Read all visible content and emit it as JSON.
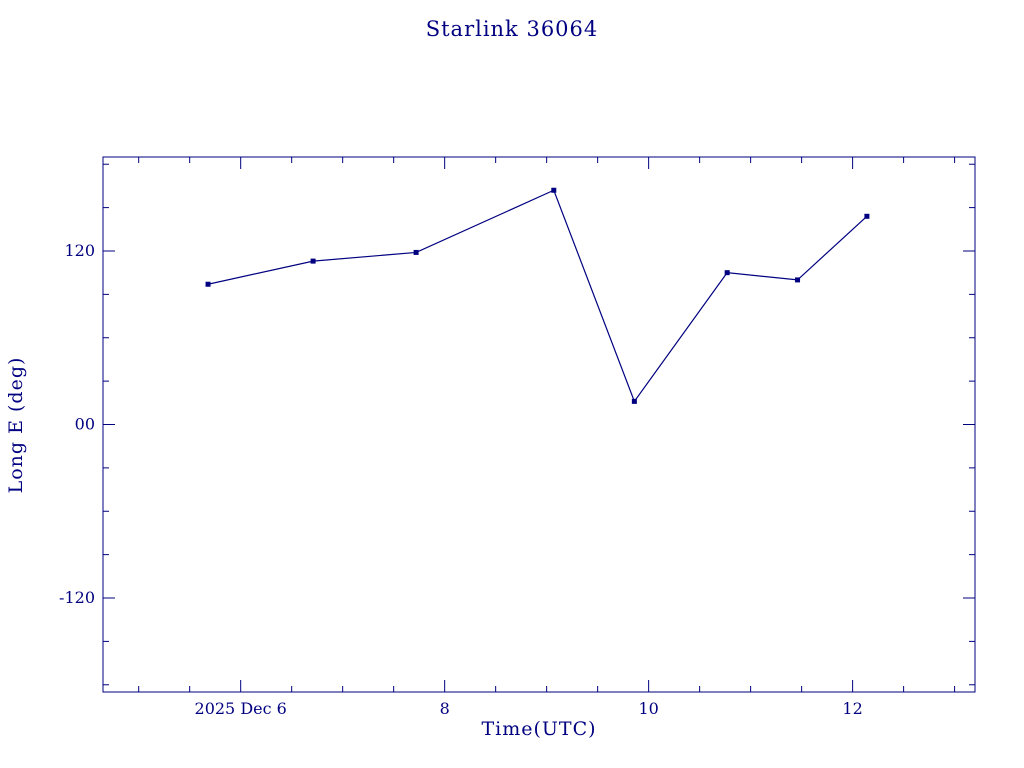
{
  "page": {
    "background": "#ffffff"
  },
  "chart_data": {
    "type": "line",
    "title": "Starlink 36064",
    "xlabel": "Time(UTC)",
    "ylabel": "Long E (deg)",
    "color": "#000080",
    "marker": "square",
    "grid": false,
    "legend": "none",
    "xlim": [
      4.65,
      13.2
    ],
    "ylim": [
      -185,
      185
    ],
    "x_ticks": {
      "values": [
        6,
        8,
        10,
        12
      ],
      "labels": [
        "2025 Dec 6",
        "8",
        "10",
        "12"
      ],
      "minor_step": 0.5
    },
    "y_ticks": {
      "values": [
        120,
        0,
        -120
      ],
      "labels": [
        "120",
        "00",
        "-120"
      ],
      "minor_step": 30
    },
    "series": [
      {
        "name": "Long E (deg)",
        "x": [
          5.68,
          6.71,
          7.72,
          9.07,
          9.86,
          10.77,
          11.46,
          12.14
        ],
        "y": [
          97,
          113,
          119,
          162,
          16,
          105,
          100,
          144
        ]
      }
    ]
  }
}
